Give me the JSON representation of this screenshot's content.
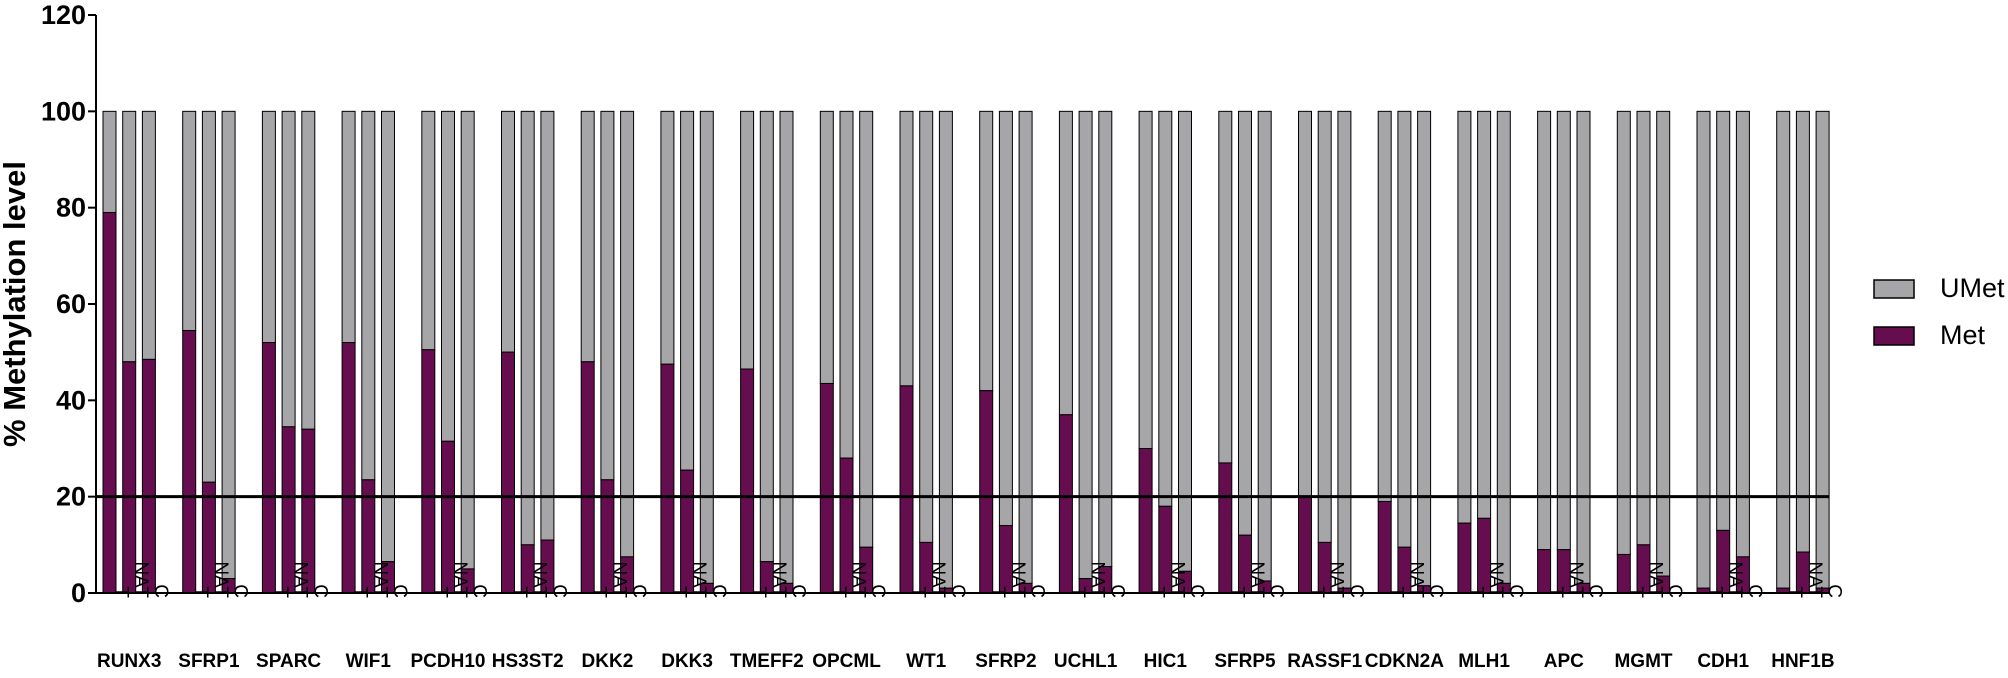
{
  "chart_data": {
    "type": "bar",
    "stacked": true,
    "ylabel": "% Methylation level",
    "xlabel": "",
    "ylim": [
      0,
      120
    ],
    "yticks": [
      0,
      20,
      40,
      60,
      80,
      100,
      120
    ],
    "reference_line": 20,
    "conditions": [
      "T",
      "NAT",
      "C"
    ],
    "groups": [
      {
        "name": "RUNX3",
        "conditions": [
          "T",
          "NAT",
          "C"
        ],
        "met": [
          79,
          48,
          48.5
        ]
      },
      {
        "name": "SFRP1",
        "conditions": [
          "T",
          "NAT",
          "C"
        ],
        "met": [
          54.5,
          23,
          3
        ]
      },
      {
        "name": "SPARC",
        "conditions": [
          "T",
          "NAT",
          "C"
        ],
        "met": [
          52,
          34.5,
          34
        ]
      },
      {
        "name": "WIF1",
        "conditions": [
          "T",
          "NAT",
          "C"
        ],
        "met": [
          52,
          23.5,
          6.5
        ]
      },
      {
        "name": "PCDH10",
        "conditions": [
          "T",
          "NAT",
          "C"
        ],
        "met": [
          50.5,
          31.5,
          5
        ]
      },
      {
        "name": "HS3ST2",
        "conditions": [
          "T",
          "NAT",
          "C"
        ],
        "met": [
          50,
          10,
          11
        ]
      },
      {
        "name": "DKK2",
        "conditions": [
          "T",
          "NAT",
          "C"
        ],
        "met": [
          48,
          23.5,
          7.5
        ]
      },
      {
        "name": "DKK3",
        "conditions": [
          "T",
          "NAT",
          "C"
        ],
        "met": [
          47.5,
          25.5,
          2
        ]
      },
      {
        "name": "TMEFF2",
        "conditions": [
          "T",
          "NAT",
          "C"
        ],
        "met": [
          46.5,
          6.5,
          2
        ]
      },
      {
        "name": "OPCML",
        "conditions": [
          "T",
          "NAT",
          "C"
        ],
        "met": [
          43.5,
          28,
          9.5
        ]
      },
      {
        "name": "WT1",
        "conditions": [
          "T",
          "NAT",
          "C"
        ],
        "met": [
          43,
          10.5,
          1
        ]
      },
      {
        "name": "SFRP2",
        "conditions": [
          "T",
          "NAT",
          "C"
        ],
        "met": [
          42,
          14,
          2
        ]
      },
      {
        "name": "UCHL1",
        "conditions": [
          "T",
          "NAT",
          "C"
        ],
        "met": [
          37,
          3,
          5.5
        ]
      },
      {
        "name": "HIC1",
        "conditions": [
          "T",
          "NAT",
          "C"
        ],
        "met": [
          30,
          18,
          4.5
        ]
      },
      {
        "name": "SFRP5",
        "conditions": [
          "T",
          "NAT",
          "C"
        ],
        "met": [
          27,
          12,
          2.5
        ]
      },
      {
        "name": "RASSF1",
        "conditions": [
          "T",
          "NAT",
          "C"
        ],
        "met": [
          20,
          10.5,
          1
        ]
      },
      {
        "name": "CDKN2A",
        "conditions": [
          "T",
          "NAT",
          "C"
        ],
        "met": [
          19,
          9.5,
          1.5
        ]
      },
      {
        "name": "MLH1",
        "conditions": [
          "T",
          "NAT",
          "C"
        ],
        "met": [
          14.5,
          15.5,
          2
        ]
      },
      {
        "name": "APC",
        "conditions": [
          "T",
          "NAT",
          "C"
        ],
        "met": [
          9,
          9,
          2
        ]
      },
      {
        "name": "MGMT",
        "conditions": [
          "T",
          "NAT",
          "C"
        ],
        "met": [
          8,
          10,
          3.5
        ]
      },
      {
        "name": "CDH1",
        "conditions": [
          "T",
          "NAT",
          "C"
        ],
        "met": [
          1,
          13,
          7.5
        ]
      },
      {
        "name": "HNF1B",
        "conditions": [
          "T",
          "NAT",
          "C"
        ],
        "met": [
          1,
          8.5,
          1
        ]
      }
    ],
    "series": [
      {
        "name": "UMet",
        "color": "#a6a6a8",
        "note": "100 minus Met"
      },
      {
        "name": "Met",
        "color": "#650d4f"
      }
    ],
    "grid": false,
    "legend_position": "right"
  }
}
